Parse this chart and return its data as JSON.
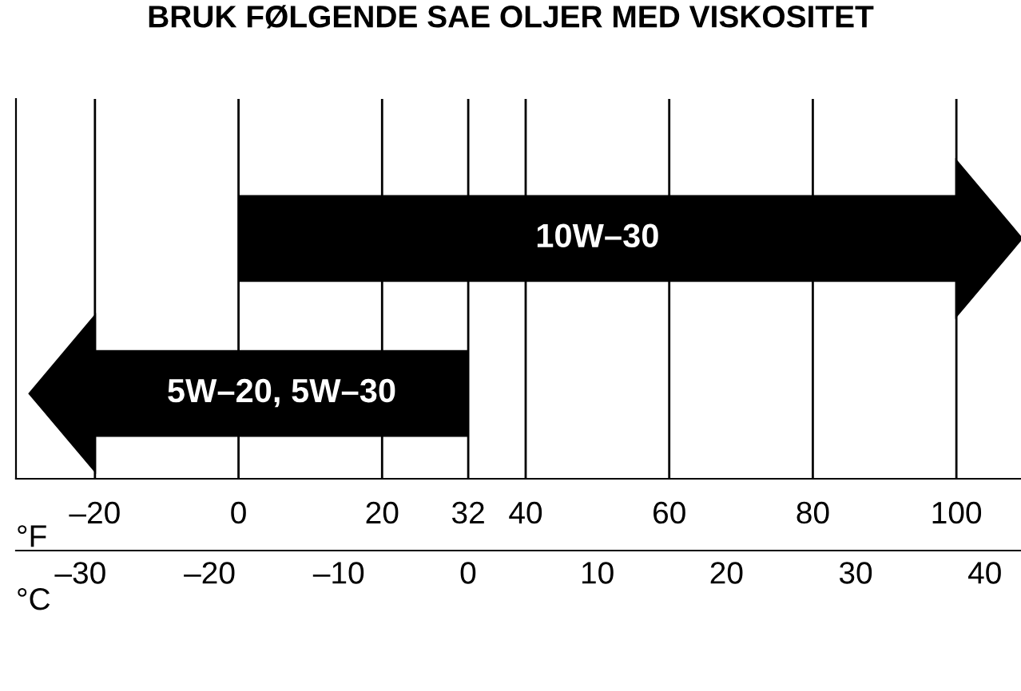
{
  "chart_data": {
    "type": "bar",
    "orientation": "horizontal",
    "title": "BRUK FØLGENDE SAE OLJER MED VISKOSITET",
    "categories": [
      "10W–30",
      "5W–20, 5W–30"
    ],
    "base": [
      0,
      -20
    ],
    "values": [
      100,
      52
    ],
    "color": "#000000",
    "xlim": [
      -31,
      109
    ],
    "xticks": [
      {
        "value": -20,
        "label": "–20"
      },
      0,
      20,
      32,
      40,
      60,
      80,
      100
    ],
    "xlabel": "°F",
    "x2lim": [
      -35,
      42.8
    ],
    "x2ticks": [
      {
        "value": -30,
        "label": "–30"
      },
      {
        "value": -20,
        "label": "–20"
      },
      {
        "value": -10,
        "label": "–10"
      },
      0,
      10,
      20,
      30,
      40
    ],
    "x2label": "°C",
    "grid": "x"
  }
}
